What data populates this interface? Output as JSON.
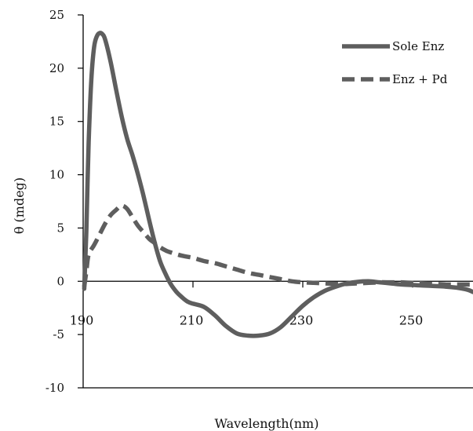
{
  "chart_data": {
    "type": "line",
    "title": "",
    "xlabel": "Wavelength(nm)",
    "ylabel": "θ (mdeg)",
    "xlim": [
      190,
      261
    ],
    "ylim": [
      -10,
      25
    ],
    "x_ticks": [
      "190",
      "210",
      "230",
      "250"
    ],
    "y_ticks": [
      "25",
      "20",
      "15",
      "10",
      "5",
      "0",
      "-5",
      "-10"
    ],
    "legend_position": "top-right",
    "grid": false,
    "series": [
      {
        "name": "Sole Enz",
        "style": "solid",
        "color": "#5e5e5e",
        "x": [
          190.2,
          190.6,
          191,
          191.5,
          192,
          192.5,
          193,
          193.5,
          194,
          195,
          196,
          197,
          198,
          199,
          200,
          201,
          202,
          203,
          204,
          205,
          206,
          207,
          208,
          209,
          210,
          212,
          214,
          216,
          218,
          220,
          222,
          224,
          226,
          228,
          230,
          232,
          234,
          236,
          238,
          240,
          242,
          244,
          246,
          248,
          250,
          252,
          254,
          256,
          258,
          260,
          261
        ],
        "y": [
          -0.7,
          5,
          13,
          19,
          22,
          23,
          23.3,
          23.2,
          22.7,
          20.6,
          18,
          15.5,
          13.4,
          11.8,
          10,
          8,
          5.8,
          3.7,
          1.9,
          0.7,
          -0.3,
          -1,
          -1.5,
          -1.9,
          -2.1,
          -2.4,
          -3.2,
          -4.2,
          -4.9,
          -5.1,
          -5.1,
          -4.9,
          -4.3,
          -3.3,
          -2.3,
          -1.5,
          -0.9,
          -0.5,
          -0.2,
          -0.05,
          0,
          -0.1,
          -0.2,
          -0.3,
          -0.35,
          -0.4,
          -0.45,
          -0.5,
          -0.6,
          -0.8,
          -1
        ]
      },
      {
        "name": "Enz + Pd",
        "style": "dashed",
        "color": "#5e5e5e",
        "x": [
          190.2,
          190.6,
          191,
          192,
          193,
          194,
          195,
          196,
          197,
          198,
          199,
          200,
          201,
          202,
          203,
          204,
          205,
          206,
          208,
          210,
          212,
          214,
          216,
          218,
          220,
          222,
          224,
          226,
          228,
          230,
          232,
          234,
          236,
          238,
          240,
          242,
          244,
          246,
          248,
          250,
          252,
          254,
          256,
          258,
          260,
          261
        ],
        "y": [
          -0.5,
          1,
          2.5,
          3.4,
          4.4,
          5.4,
          6.2,
          6.7,
          7.1,
          6.8,
          6,
          5.2,
          4.6,
          4,
          3.6,
          3.2,
          2.9,
          2.7,
          2.4,
          2.2,
          1.9,
          1.7,
          1.4,
          1.1,
          0.8,
          0.6,
          0.4,
          0.2,
          0,
          -0.1,
          -0.15,
          -0.2,
          -0.25,
          -0.25,
          -0.2,
          -0.15,
          -0.1,
          -0.1,
          -0.1,
          -0.15,
          -0.2,
          -0.25,
          -0.3,
          -0.3,
          -0.3,
          -0.3
        ]
      }
    ]
  }
}
